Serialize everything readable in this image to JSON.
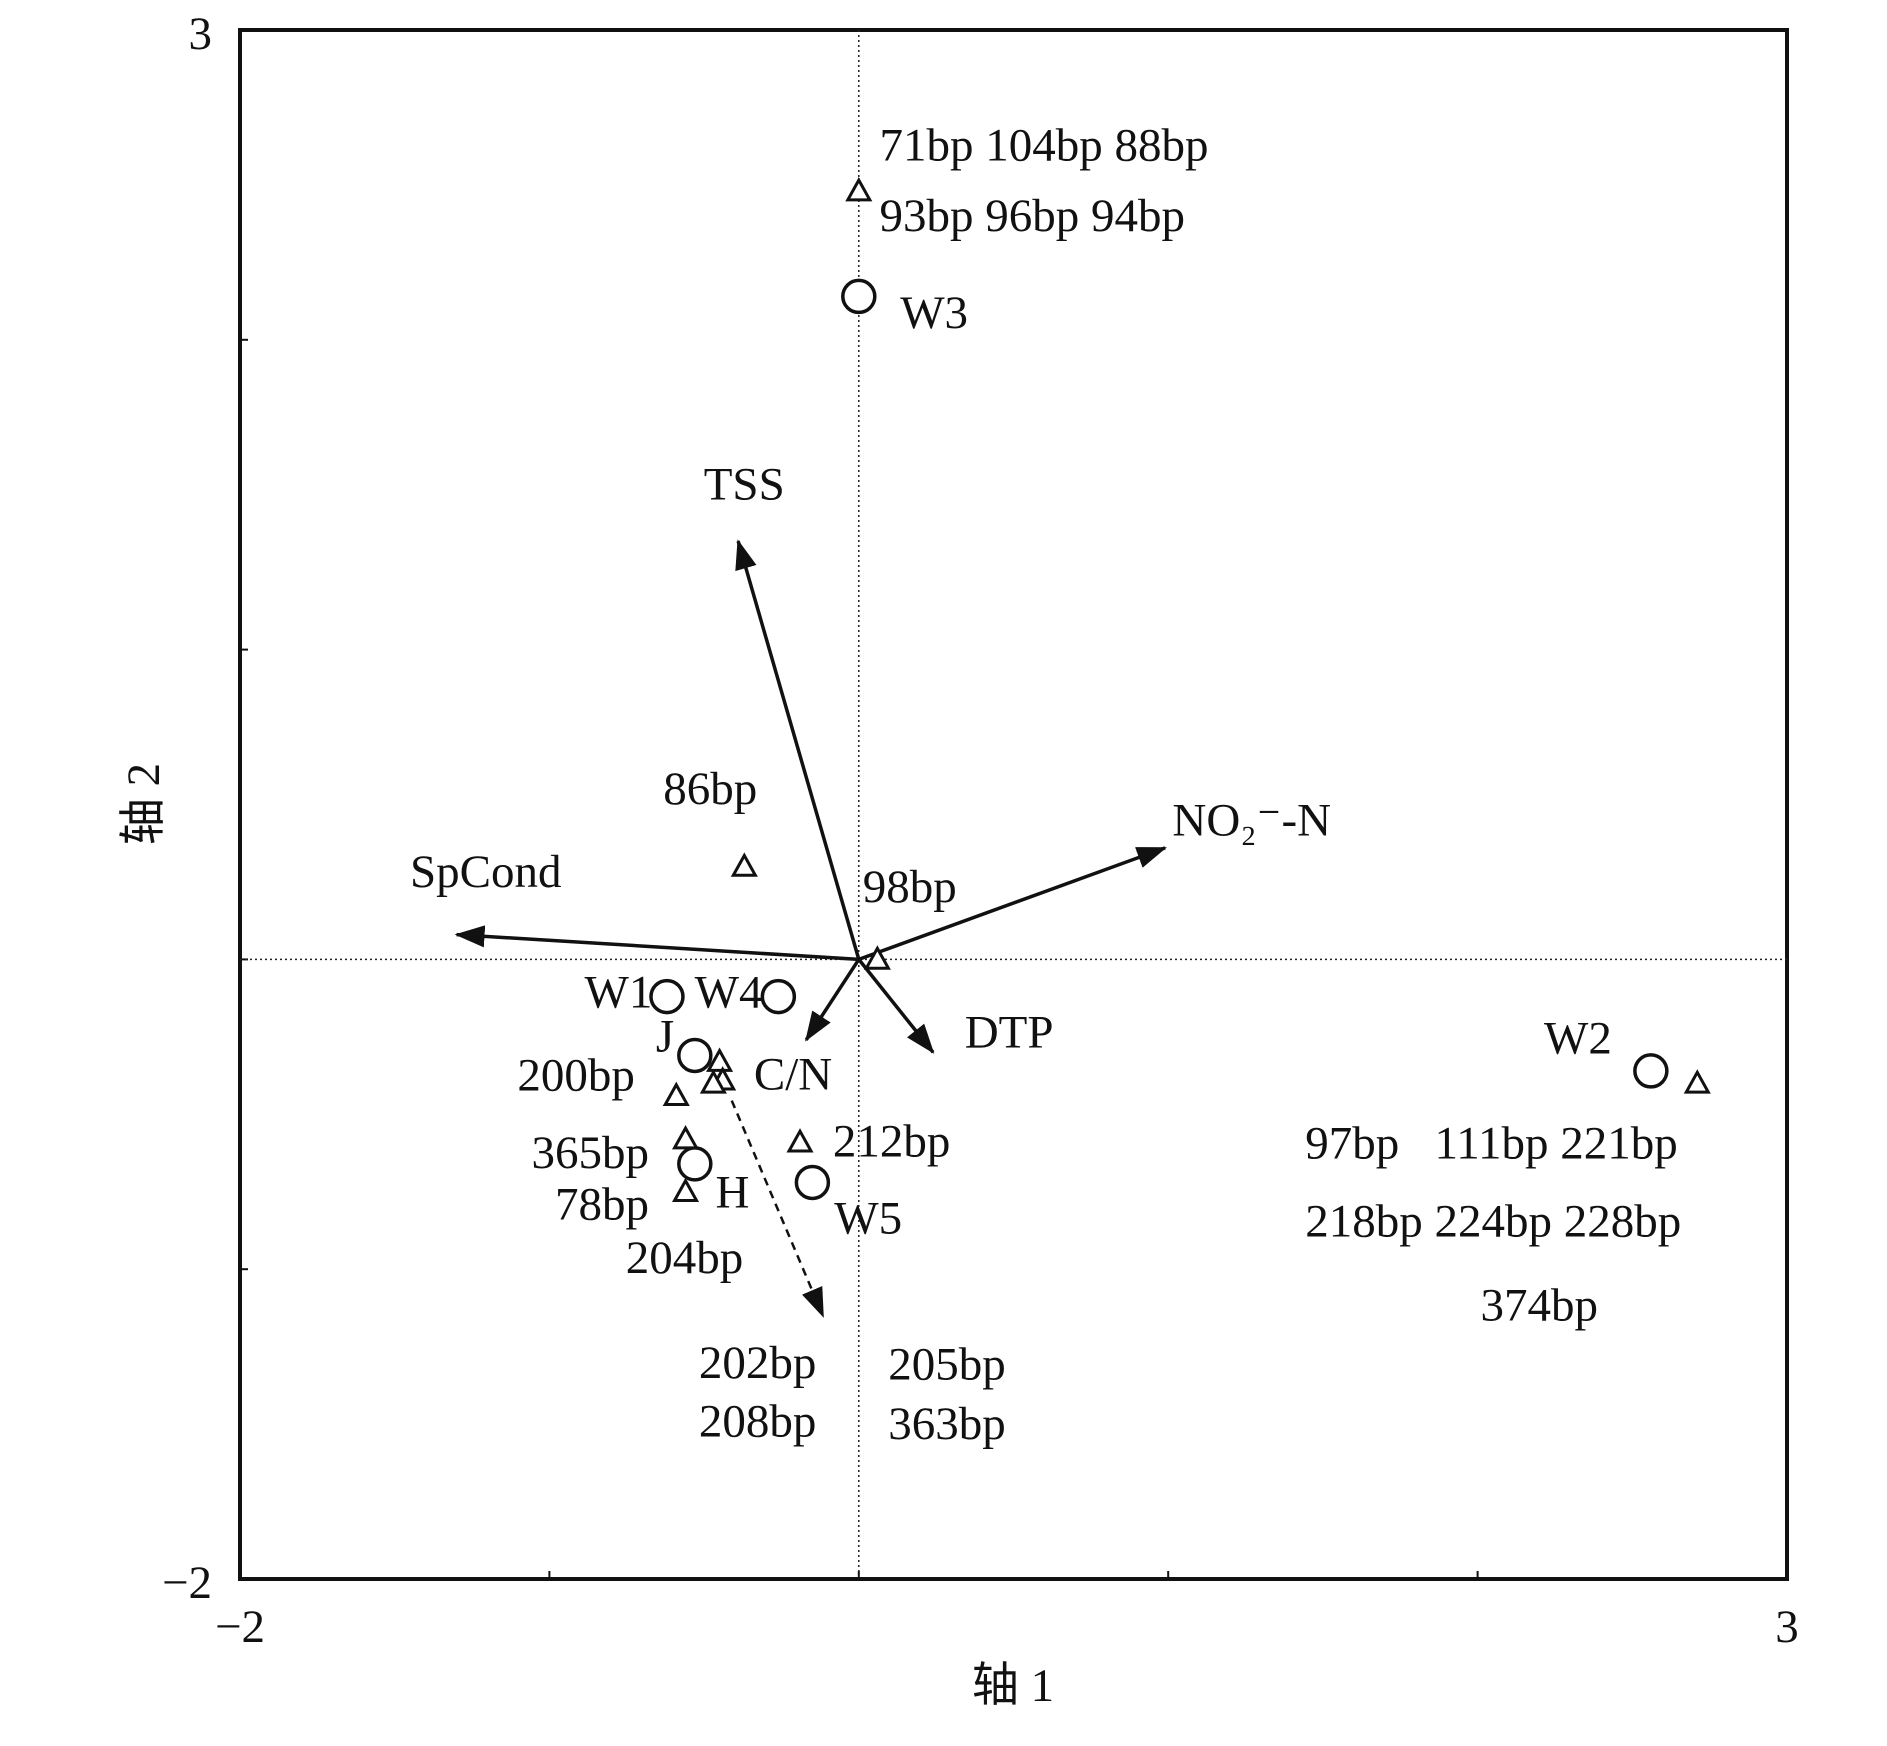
{
  "chart_data": {
    "type": "biplot",
    "xlabel": "轴 1",
    "ylabel": "轴 2",
    "xlim": [
      -2,
      3
    ],
    "ylim": [
      -2,
      3
    ],
    "xticks": [
      {
        "value": -2,
        "label": "−2"
      },
      3
    ],
    "yticks": [
      {
        "value": -2,
        "label": "−2"
      },
      3
    ],
    "xminor": [
      -1,
      0,
      1,
      2
    ],
    "yminor": [
      -1,
      0,
      1,
      2
    ],
    "zero_lines": true,
    "sites": {
      "x": [
        0.0,
        -0.62,
        -0.26,
        -0.53,
        -0.53,
        -0.15,
        2.56
      ],
      "y": [
        2.14,
        -0.12,
        -0.12,
        -0.31,
        -0.66,
        -0.72,
        -0.36
      ],
      "labels": [
        "W3",
        "W1",
        "W4",
        "J",
        "H",
        "W5",
        "W2"
      ]
    },
    "species": {
      "x": [
        0.0,
        -0.37,
        0.06,
        -0.59,
        -0.45,
        -0.44,
        -0.47,
        -0.19,
        -0.56,
        -0.56,
        2.71
      ],
      "y": [
        2.48,
        0.3,
        0.0,
        -0.44,
        -0.33,
        -0.39,
        -0.4,
        -0.59,
        -0.58,
        -0.75,
        -0.4
      ],
      "labels": [
        [
          "71bp 104bp 88bp",
          "93bp 96bp 94bp"
        ],
        [
          "86bp"
        ],
        [
          "98bp"
        ],
        [
          "200bp"
        ],
        [
          "202bp",
          "208bp"
        ],
        [
          "205bp",
          "363bp"
        ],
        [
          "204bp"
        ],
        [
          "212bp"
        ],
        [
          "365bp"
        ],
        [
          "78bp"
        ],
        [
          "97bp   111bp 221bp",
          "218bp 224bp 228bp",
          "374bp"
        ]
      ]
    },
    "vectors": {
      "x": [
        -0.39,
        -1.3,
        0.99,
        0.24,
        -0.17
      ],
      "y": [
        1.35,
        0.08,
        0.36,
        -0.3,
        -0.26
      ],
      "labels": [
        "TSS",
        "SpCond",
        "NO₂⁻-N",
        "DTP",
        "C/N"
      ]
    }
  }
}
